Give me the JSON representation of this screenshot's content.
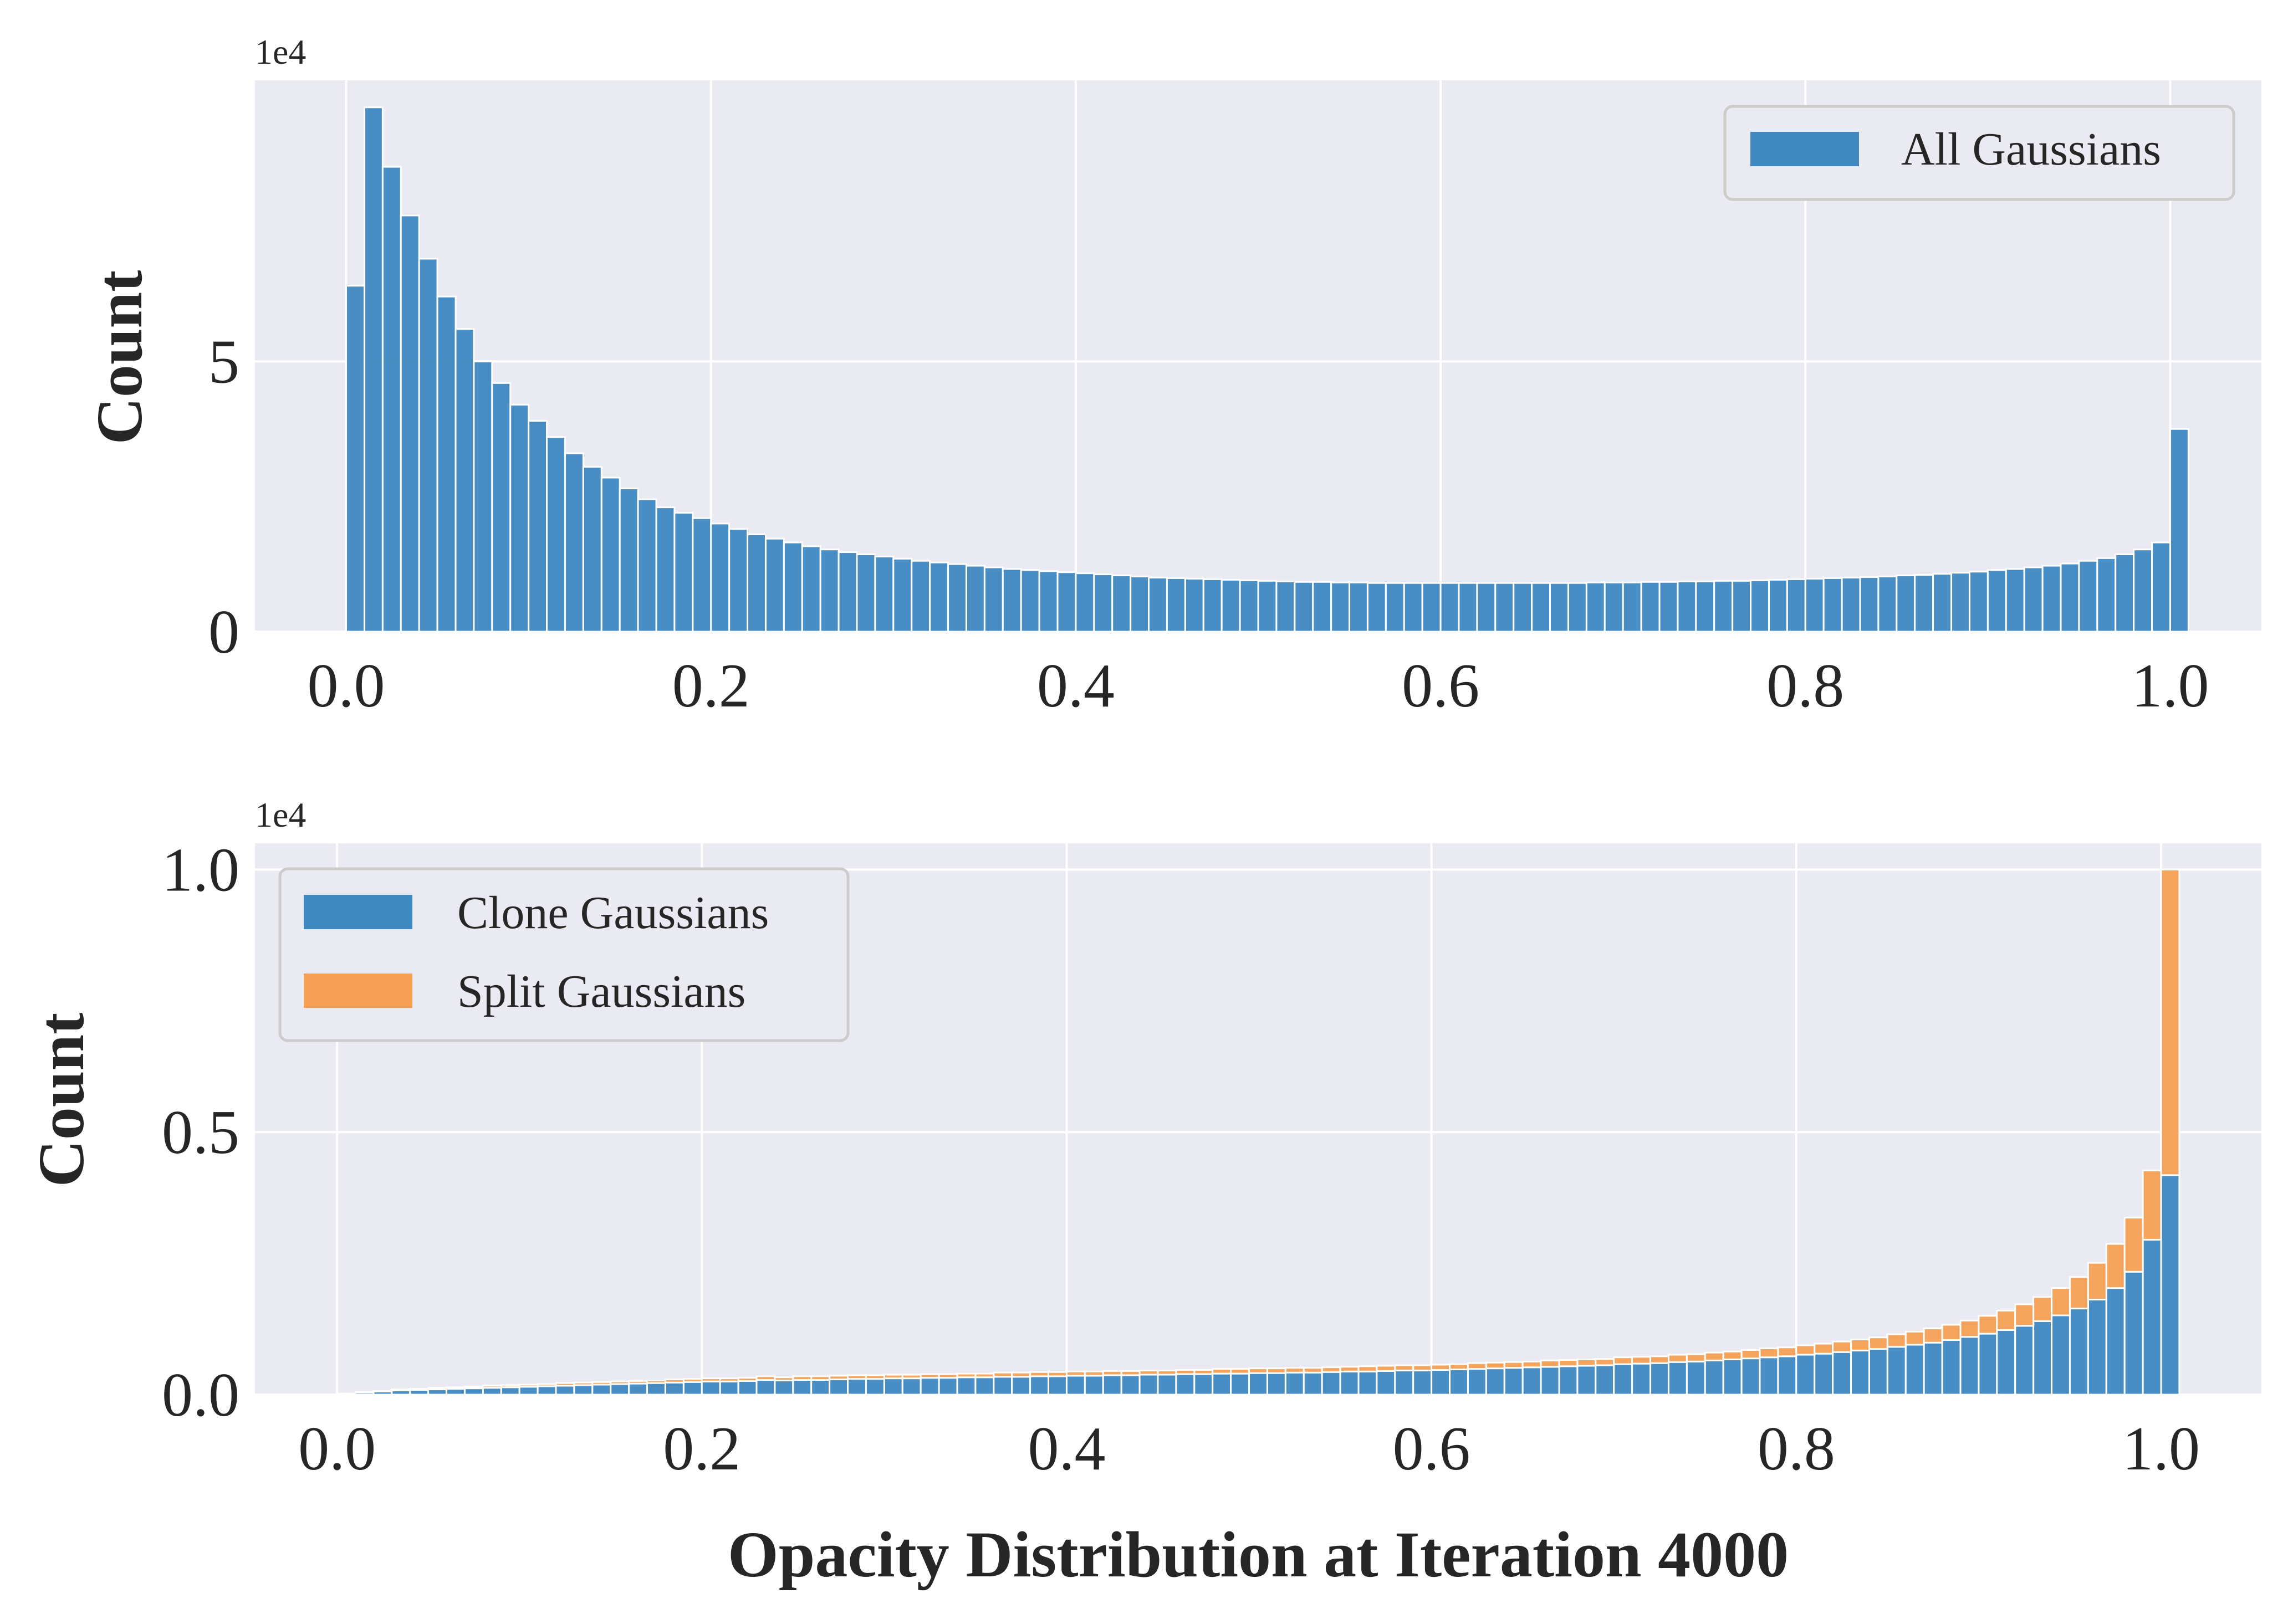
{
  "chart_data": [
    {
      "type": "bar",
      "xlabel": "",
      "ylabel": "Count",
      "y_offset_label": "1e4",
      "xlim": [
        -0.05,
        1.05
      ],
      "ylim": [
        0,
        10.2
      ],
      "xticks": [
        0.0,
        0.2,
        0.4,
        0.6,
        0.8,
        1.0
      ],
      "xtick_labels": [
        "0.0",
        "0.2",
        "0.4",
        "0.6",
        "0.8",
        "1.0"
      ],
      "yticks": [
        0,
        5
      ],
      "ytick_labels": [
        "0",
        "5"
      ],
      "grid": true,
      "legend_position": "top-right",
      "bin_width": 0.01,
      "bin_start": 0.0,
      "series": [
        {
          "name": "All Gaussians",
          "color": "#3f88c0",
          "values": [
            6.4,
            9.7,
            8.6,
            7.7,
            6.9,
            6.2,
            5.6,
            5.0,
            4.6,
            4.2,
            3.9,
            3.6,
            3.3,
            3.05,
            2.85,
            2.65,
            2.45,
            2.3,
            2.2,
            2.1,
            2.0,
            1.9,
            1.8,
            1.72,
            1.65,
            1.58,
            1.52,
            1.47,
            1.43,
            1.39,
            1.35,
            1.31,
            1.28,
            1.25,
            1.22,
            1.19,
            1.16,
            1.14,
            1.12,
            1.1,
            1.08,
            1.06,
            1.04,
            1.02,
            1.0,
            0.99,
            0.98,
            0.97,
            0.96,
            0.95,
            0.94,
            0.93,
            0.92,
            0.92,
            0.91,
            0.91,
            0.9,
            0.9,
            0.9,
            0.9,
            0.9,
            0.9,
            0.9,
            0.9,
            0.9,
            0.9,
            0.9,
            0.9,
            0.91,
            0.91,
            0.91,
            0.92,
            0.92,
            0.93,
            0.93,
            0.94,
            0.94,
            0.95,
            0.96,
            0.97,
            0.98,
            0.99,
            1.0,
            1.01,
            1.02,
            1.04,
            1.05,
            1.07,
            1.09,
            1.11,
            1.14,
            1.16,
            1.19,
            1.22,
            1.26,
            1.31,
            1.36,
            1.43,
            1.52,
            1.65,
            3.75
          ]
        }
      ]
    },
    {
      "type": "bar",
      "stacked": true,
      "xlabel": "Opacity Distribution at Iteration 4000",
      "ylabel": "Count",
      "y_offset_label": "1e4",
      "xlim": [
        -0.045,
        1.055
      ],
      "ylim": [
        0,
        1.05
      ],
      "xticks": [
        0.0,
        0.2,
        0.4,
        0.6,
        0.8,
        1.0
      ],
      "xtick_labels": [
        "0.0",
        "0.2",
        "0.4",
        "0.6",
        "0.8",
        "1.0"
      ],
      "yticks": [
        0.0,
        0.5,
        1.0
      ],
      "ytick_labels": [
        "0.0",
        "0.5",
        "1.0"
      ],
      "grid": true,
      "legend_position": "top-left",
      "bin_width": 0.01,
      "bin_start": 0.0,
      "series": [
        {
          "name": "Clone Gaussians",
          "color": "#3f88c0",
          "values": [
            0.002,
            0.004,
            0.006,
            0.008,
            0.009,
            0.01,
            0.011,
            0.012,
            0.013,
            0.014,
            0.015,
            0.016,
            0.017,
            0.018,
            0.019,
            0.02,
            0.021,
            0.022,
            0.023,
            0.024,
            0.025,
            0.025,
            0.026,
            0.028,
            0.027,
            0.028,
            0.028,
            0.029,
            0.03,
            0.03,
            0.031,
            0.031,
            0.032,
            0.032,
            0.033,
            0.033,
            0.034,
            0.034,
            0.035,
            0.035,
            0.036,
            0.036,
            0.037,
            0.037,
            0.038,
            0.038,
            0.039,
            0.039,
            0.04,
            0.04,
            0.041,
            0.041,
            0.042,
            0.042,
            0.043,
            0.044,
            0.044,
            0.045,
            0.046,
            0.046,
            0.047,
            0.048,
            0.049,
            0.05,
            0.051,
            0.052,
            0.053,
            0.054,
            0.055,
            0.056,
            0.058,
            0.059,
            0.06,
            0.062,
            0.063,
            0.065,
            0.067,
            0.069,
            0.071,
            0.073,
            0.076,
            0.078,
            0.081,
            0.084,
            0.087,
            0.091,
            0.095,
            0.099,
            0.104,
            0.11,
            0.116,
            0.123,
            0.131,
            0.14,
            0.151,
            0.164,
            0.181,
            0.203,
            0.234,
            0.295,
            0.418
          ]
        },
        {
          "name": "Split Gaussians",
          "color": "#f5a054",
          "values": [
            0.0,
            0.001,
            0.001,
            0.002,
            0.002,
            0.003,
            0.003,
            0.003,
            0.004,
            0.004,
            0.004,
            0.004,
            0.005,
            0.005,
            0.005,
            0.005,
            0.005,
            0.005,
            0.006,
            0.006,
            0.006,
            0.006,
            0.006,
            0.007,
            0.006,
            0.007,
            0.007,
            0.007,
            0.007,
            0.007,
            0.007,
            0.007,
            0.007,
            0.007,
            0.007,
            0.007,
            0.008,
            0.008,
            0.008,
            0.008,
            0.008,
            0.008,
            0.008,
            0.008,
            0.008,
            0.008,
            0.008,
            0.008,
            0.009,
            0.009,
            0.009,
            0.009,
            0.009,
            0.009,
            0.009,
            0.009,
            0.01,
            0.01,
            0.01,
            0.01,
            0.01,
            0.01,
            0.011,
            0.011,
            0.011,
            0.011,
            0.012,
            0.012,
            0.012,
            0.012,
            0.013,
            0.013,
            0.013,
            0.014,
            0.014,
            0.015,
            0.015,
            0.016,
            0.017,
            0.017,
            0.018,
            0.019,
            0.02,
            0.021,
            0.022,
            0.024,
            0.025,
            0.027,
            0.029,
            0.031,
            0.034,
            0.037,
            0.041,
            0.046,
            0.052,
            0.06,
            0.07,
            0.084,
            0.103,
            0.132,
            0.582
          ]
        }
      ]
    }
  ]
}
